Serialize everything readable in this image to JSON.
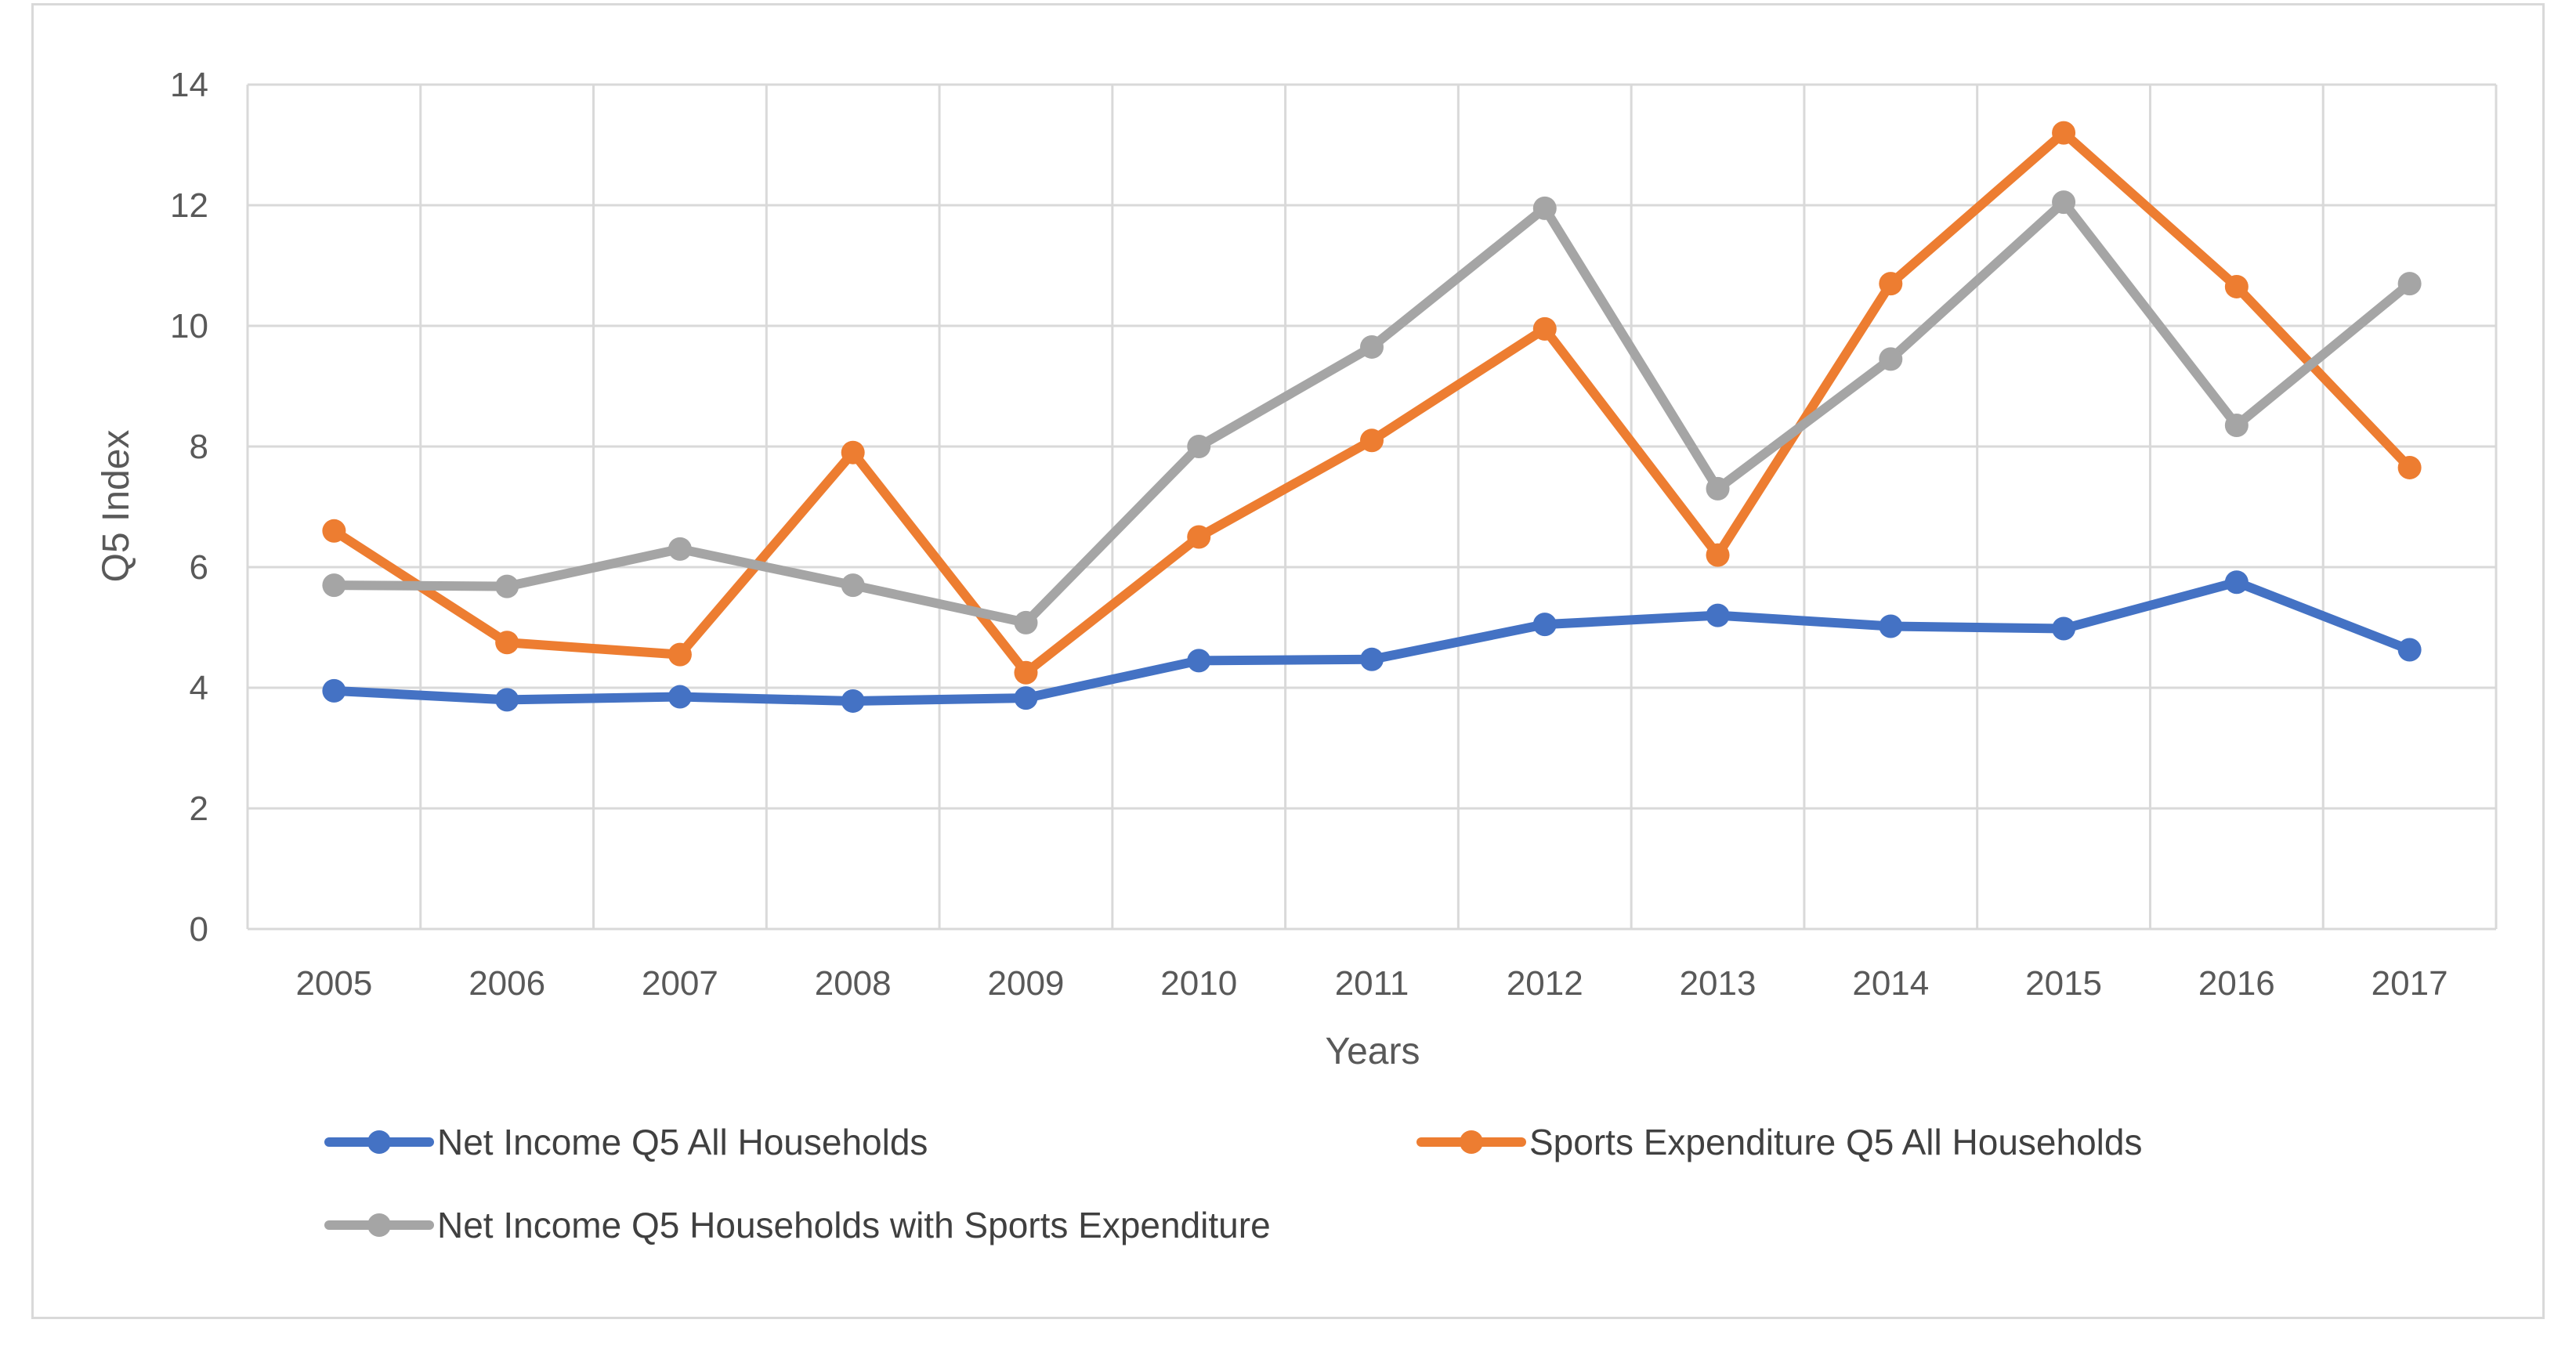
{
  "chart_data": {
    "type": "line",
    "title": "",
    "xlabel": "Years",
    "ylabel": "Q5 Index",
    "categories": [
      "2005",
      "2006",
      "2007",
      "2008",
      "2009",
      "2010",
      "2011",
      "2012",
      "2013",
      "2014",
      "2015",
      "2016",
      "2017"
    ],
    "ylim": [
      0,
      14
    ],
    "yticks": [
      "0",
      "2",
      "4",
      "6",
      "8",
      "10",
      "12",
      "14"
    ],
    "grid": true,
    "legend_position": "bottom",
    "series": [
      {
        "name": "Net Income Q5 All Households",
        "color": "#4472c4",
        "values": [
          3.95,
          3.8,
          3.85,
          3.78,
          3.83,
          4.45,
          4.47,
          5.05,
          5.2,
          5.02,
          4.98,
          5.75,
          4.63
        ]
      },
      {
        "name": "Sports Expenditure Q5 All Households",
        "color": "#ed7d31",
        "values": [
          6.6,
          4.75,
          4.55,
          7.9,
          4.25,
          6.5,
          8.1,
          9.95,
          6.2,
          10.7,
          13.2,
          10.65,
          7.65
        ]
      },
      {
        "name": "Net Income Q5 Households with Sports Expenditure",
        "color": "#a5a5a5",
        "values": [
          5.7,
          5.68,
          6.3,
          5.7,
          5.08,
          8.0,
          9.65,
          11.95,
          7.3,
          9.45,
          12.05,
          8.35,
          10.7
        ]
      }
    ]
  },
  "style": {
    "gridline_color": "#d9d9d9",
    "frame_color": "#d9d9d9",
    "text_color": "#595959"
  }
}
